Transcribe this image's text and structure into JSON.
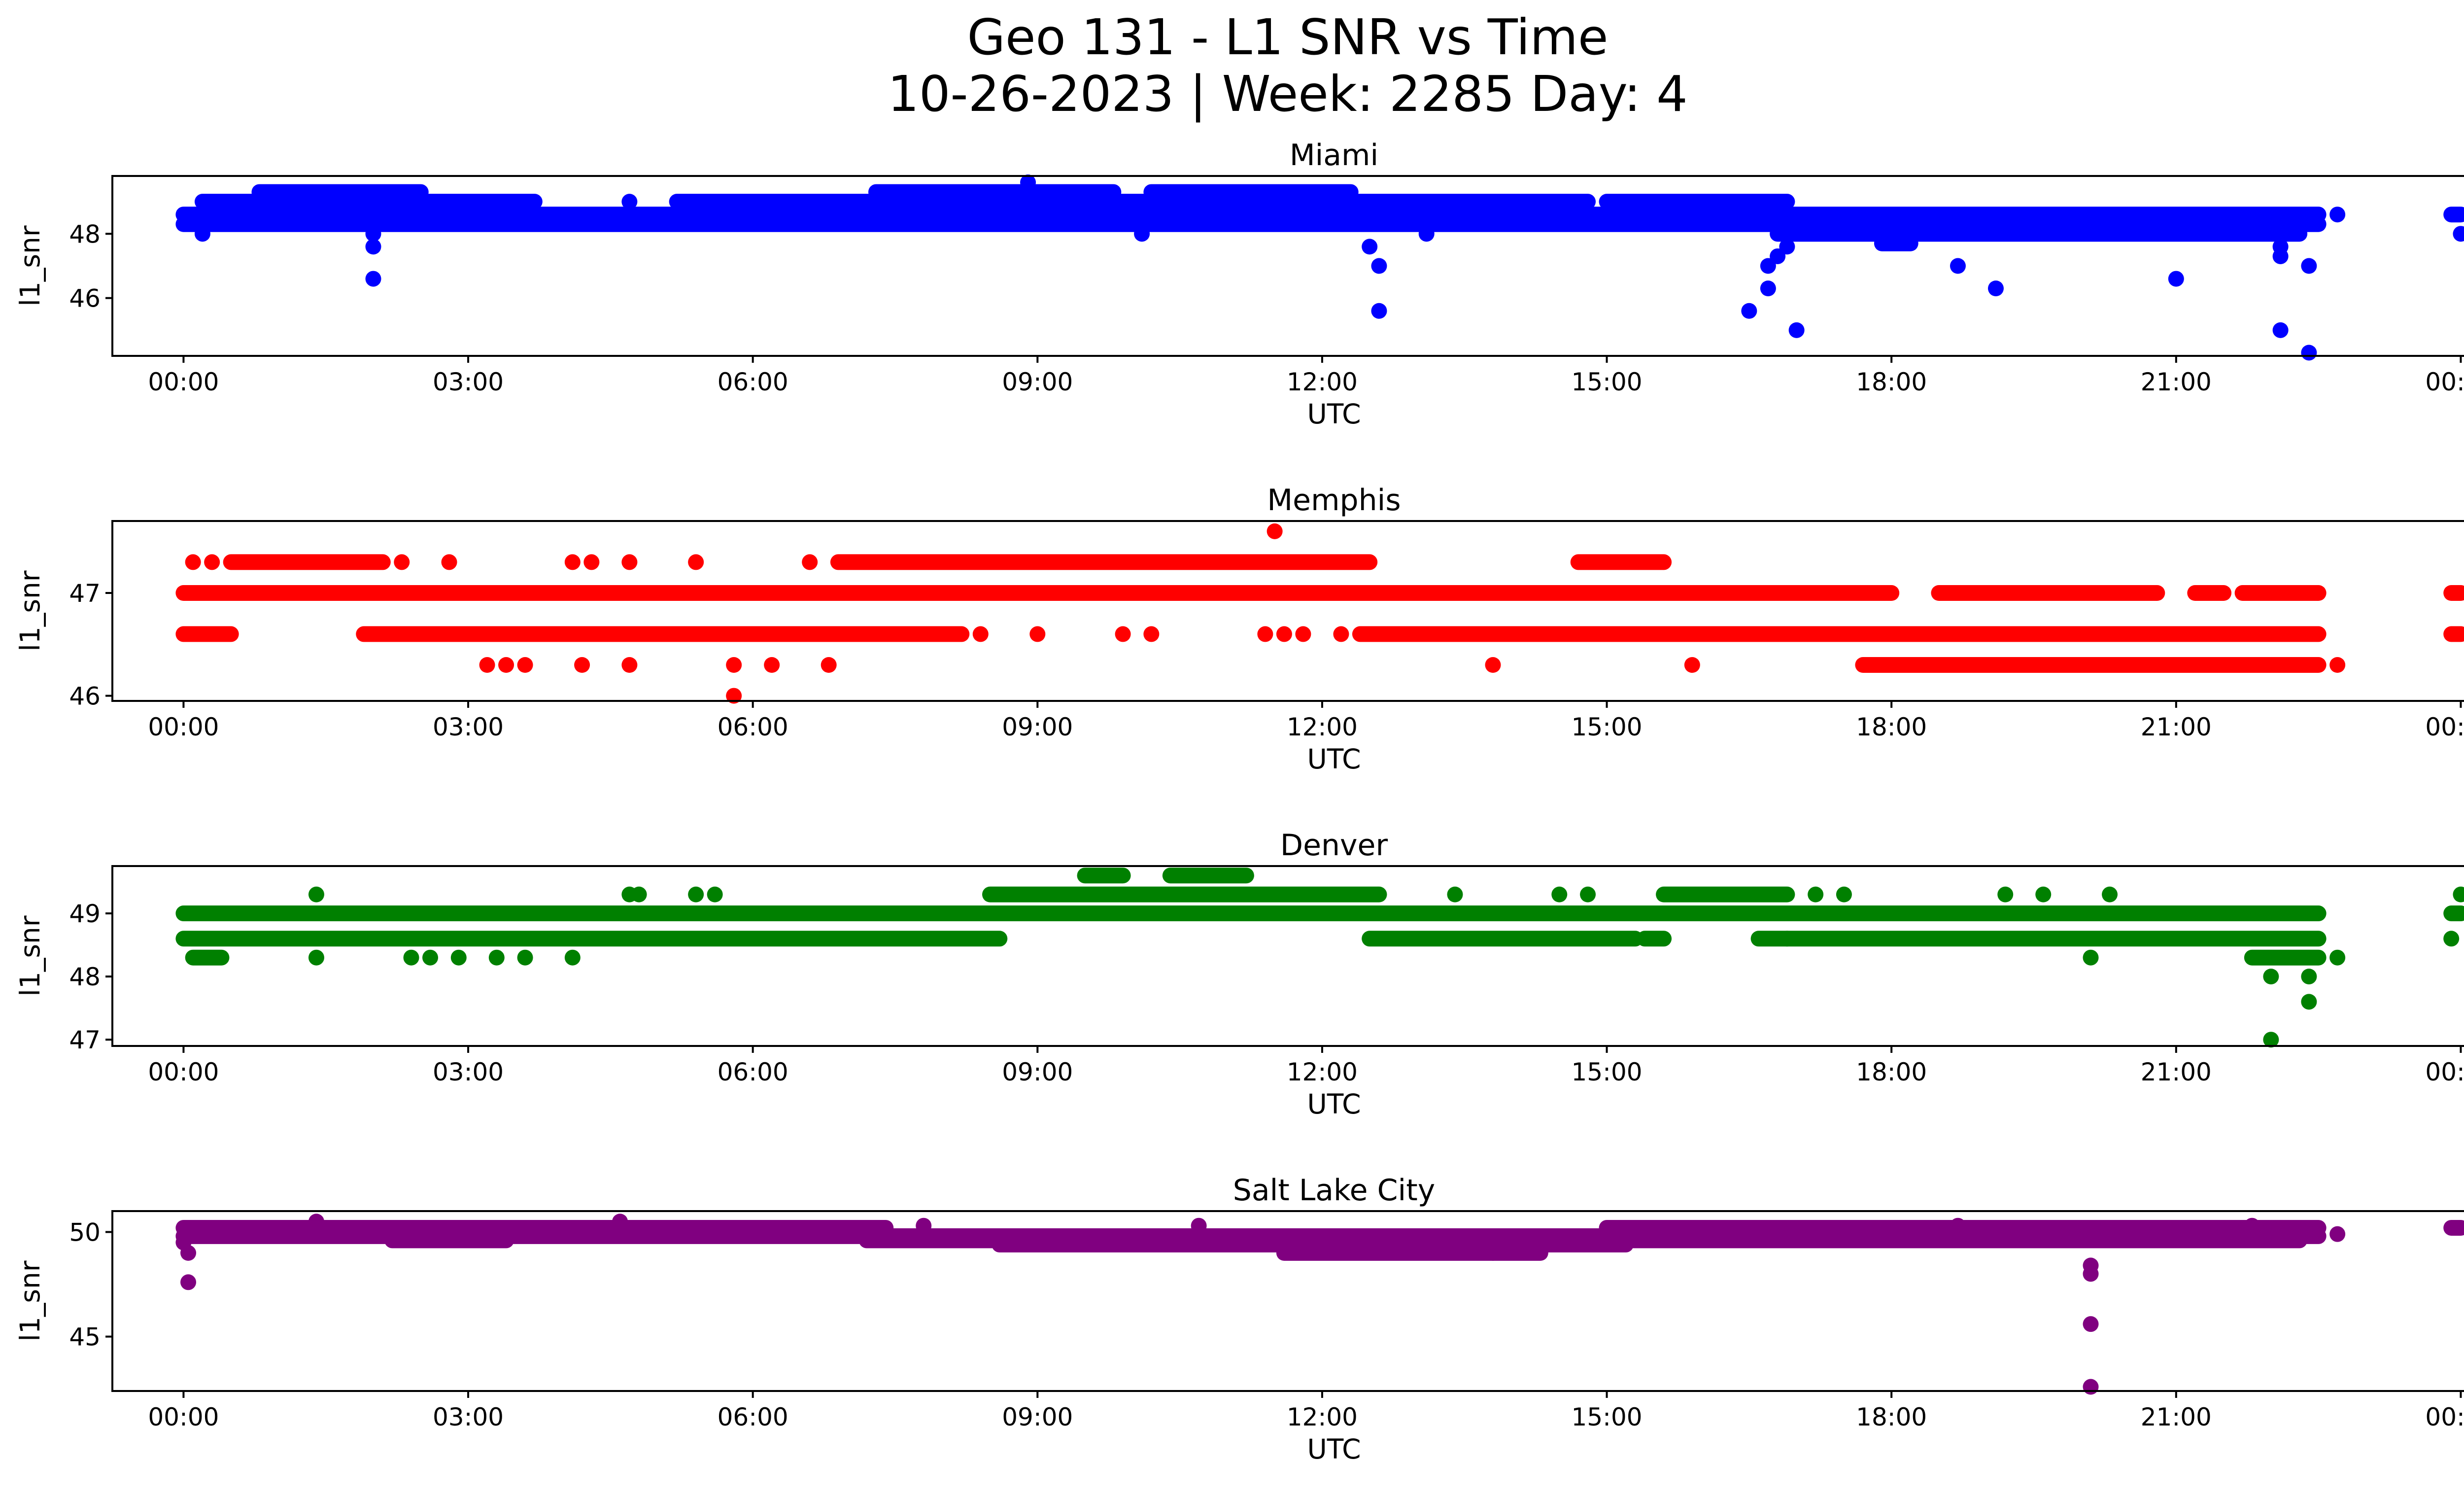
{
  "figure": {
    "title_line1": "Geo 131 - L1 SNR vs Time",
    "title_line2": "10-26-2023 | Week: 2285 Day: 4"
  },
  "chart_data": [
    {
      "type": "scatter",
      "title": "Miami",
      "xlabel": "UTC",
      "ylabel": "l1_snr",
      "color": "#0000ff",
      "x_unit": "hours since 00:00 UTC",
      "xlim": [
        -0.75,
        25.0
      ],
      "ylim": [
        44.2,
        49.8
      ],
      "yticks": [
        46,
        48
      ],
      "xtick_labels": [
        "00:00",
        "03:00",
        "06:00",
        "09:00",
        "12:00",
        "15:00",
        "18:00",
        "21:00",
        "00:00"
      ],
      "bands": [
        {
          "y": 48.3,
          "x": [
            [
              0.0,
              22.5
            ]
          ]
        },
        {
          "y": 48.6,
          "x": [
            [
              0.0,
              22.5
            ],
            [
              23.9,
              24.0
            ]
          ]
        },
        {
          "y": 49.0,
          "x": [
            [
              0.2,
              2.5
            ],
            [
              2.5,
              3.7
            ],
            [
              5.2,
              7.4
            ],
            [
              7.4,
              14.8
            ],
            [
              15.0,
              16.9
            ]
          ]
        },
        {
          "y": 49.3,
          "x": [
            [
              0.8,
              2.5
            ],
            [
              7.3,
              9.8
            ],
            [
              10.2,
              12.3
            ]
          ]
        },
        {
          "y": 48.0,
          "x": [
            [
              16.8,
              22.3
            ]
          ]
        },
        {
          "y": 47.7,
          "x": [
            [
              17.9,
              18.2
            ]
          ]
        }
      ],
      "points": [
        {
          "x": 2.0,
          "y": 48.0
        },
        {
          "x": 2.0,
          "y": 47.6
        },
        {
          "x": 2.0,
          "y": 46.6
        },
        {
          "x": 0.2,
          "y": 48.0
        },
        {
          "x": 4.7,
          "y": 49.0
        },
        {
          "x": 8.9,
          "y": 49.6
        },
        {
          "x": 10.1,
          "y": 48.0
        },
        {
          "x": 12.5,
          "y": 47.6
        },
        {
          "x": 12.6,
          "y": 47.0
        },
        {
          "x": 12.6,
          "y": 45.6
        },
        {
          "x": 13.1,
          "y": 48.0
        },
        {
          "x": 16.5,
          "y": 45.6
        },
        {
          "x": 16.7,
          "y": 47.0
        },
        {
          "x": 16.7,
          "y": 46.3
        },
        {
          "x": 16.8,
          "y": 47.3
        },
        {
          "x": 16.9,
          "y": 47.6
        },
        {
          "x": 17.0,
          "y": 45.0
        },
        {
          "x": 18.7,
          "y": 47.0
        },
        {
          "x": 19.1,
          "y": 46.3
        },
        {
          "x": 21.0,
          "y": 46.6
        },
        {
          "x": 22.1,
          "y": 47.6
        },
        {
          "x": 22.1,
          "y": 47.3
        },
        {
          "x": 22.1,
          "y": 45.0
        },
        {
          "x": 22.4,
          "y": 44.3
        },
        {
          "x": 22.4,
          "y": 47.0
        },
        {
          "x": 22.7,
          "y": 48.6
        },
        {
          "x": 24.0,
          "y": 48.0
        }
      ]
    },
    {
      "type": "scatter",
      "title": "Memphis",
      "xlabel": "UTC",
      "ylabel": "l1_snr",
      "color": "#ff0000",
      "x_unit": "hours since 00:00 UTC",
      "xlim": [
        -0.75,
        25.0
      ],
      "ylim": [
        45.95,
        47.7
      ],
      "yticks": [
        46,
        47
      ],
      "xtick_labels": [
        "00:00",
        "03:00",
        "06:00",
        "09:00",
        "12:00",
        "15:00",
        "18:00",
        "21:00",
        "00:00"
      ],
      "bands": [
        {
          "y": 47.0,
          "x": [
            [
              0.0,
              18.0
            ],
            [
              18.5,
              20.8
            ],
            [
              21.2,
              21.5
            ],
            [
              21.7,
              22.5
            ],
            [
              23.9,
              24.0
            ]
          ]
        },
        {
          "y": 47.3,
          "x": [
            [
              0.5,
              2.1
            ],
            [
              6.9,
              12.5
            ],
            [
              14.7,
              15.6
            ]
          ]
        },
        {
          "y": 46.6,
          "x": [
            [
              0.0,
              0.5
            ],
            [
              1.9,
              8.2
            ],
            [
              12.4,
              22.5
            ],
            [
              23.9,
              24.0
            ]
          ]
        },
        {
          "y": 46.3,
          "x": [
            [
              17.7,
              22.5
            ]
          ]
        }
      ],
      "points": [
        {
          "x": 0.1,
          "y": 47.3
        },
        {
          "x": 0.3,
          "y": 47.3
        },
        {
          "x": 2.3,
          "y": 47.3
        },
        {
          "x": 2.8,
          "y": 47.3
        },
        {
          "x": 4.1,
          "y": 47.3
        },
        {
          "x": 4.3,
          "y": 47.3
        },
        {
          "x": 4.7,
          "y": 47.3
        },
        {
          "x": 5.4,
          "y": 47.3
        },
        {
          "x": 6.6,
          "y": 47.3
        },
        {
          "x": 3.2,
          "y": 46.3
        },
        {
          "x": 3.4,
          "y": 46.3
        },
        {
          "x": 3.6,
          "y": 46.3
        },
        {
          "x": 4.2,
          "y": 46.3
        },
        {
          "x": 4.7,
          "y": 46.3
        },
        {
          "x": 5.8,
          "y": 46.3
        },
        {
          "x": 6.2,
          "y": 46.3
        },
        {
          "x": 6.8,
          "y": 46.3
        },
        {
          "x": 5.8,
          "y": 46.0
        },
        {
          "x": 8.4,
          "y": 46.6
        },
        {
          "x": 9.0,
          "y": 46.6
        },
        {
          "x": 9.9,
          "y": 46.6
        },
        {
          "x": 10.2,
          "y": 46.6
        },
        {
          "x": 11.4,
          "y": 46.6
        },
        {
          "x": 11.6,
          "y": 46.6
        },
        {
          "x": 11.8,
          "y": 46.6
        },
        {
          "x": 12.2,
          "y": 46.6
        },
        {
          "x": 11.5,
          "y": 47.6
        },
        {
          "x": 13.8,
          "y": 46.3
        },
        {
          "x": 15.9,
          "y": 46.3
        },
        {
          "x": 22.7,
          "y": 46.3
        }
      ]
    },
    {
      "type": "scatter",
      "title": "Denver",
      "xlabel": "UTC",
      "ylabel": "l1_snr",
      "color": "#008000",
      "x_unit": "hours since 00:00 UTC",
      "xlim": [
        -0.75,
        25.0
      ],
      "ylim": [
        46.9,
        49.75
      ],
      "yticks": [
        47,
        48,
        49
      ],
      "xtick_labels": [
        "00:00",
        "03:00",
        "06:00",
        "09:00",
        "12:00",
        "15:00",
        "18:00",
        "21:00",
        "00:00"
      ],
      "bands": [
        {
          "y": 49.0,
          "x": [
            [
              0.0,
              22.5
            ],
            [
              23.9,
              24.0
            ]
          ]
        },
        {
          "y": 48.6,
          "x": [
            [
              0.0,
              8.6
            ],
            [
              12.5,
              15.3
            ],
            [
              15.4,
              15.6
            ],
            [
              16.6,
              22.5
            ]
          ]
        },
        {
          "y": 49.3,
          "x": [
            [
              8.5,
              12.6
            ],
            [
              15.6,
              16.9
            ]
          ]
        },
        {
          "y": 49.6,
          "x": [
            [
              9.5,
              9.9
            ],
            [
              10.4,
              11.2
            ]
          ]
        },
        {
          "y": 48.3,
          "x": [
            [
              0.1,
              0.4
            ],
            [
              21.8,
              22.5
            ]
          ]
        }
      ],
      "points": [
        {
          "x": 1.4,
          "y": 49.3
        },
        {
          "x": 4.7,
          "y": 49.3
        },
        {
          "x": 4.8,
          "y": 49.3
        },
        {
          "x": 5.4,
          "y": 49.3
        },
        {
          "x": 5.6,
          "y": 49.3
        },
        {
          "x": 13.4,
          "y": 49.3
        },
        {
          "x": 14.5,
          "y": 49.3
        },
        {
          "x": 14.8,
          "y": 49.3
        },
        {
          "x": 17.2,
          "y": 49.3
        },
        {
          "x": 17.5,
          "y": 49.3
        },
        {
          "x": 19.2,
          "y": 49.3
        },
        {
          "x": 19.6,
          "y": 49.3
        },
        {
          "x": 20.3,
          "y": 49.3
        },
        {
          "x": 24.0,
          "y": 49.3
        },
        {
          "x": 1.4,
          "y": 48.3
        },
        {
          "x": 2.4,
          "y": 48.3
        },
        {
          "x": 2.6,
          "y": 48.3
        },
        {
          "x": 2.9,
          "y": 48.3
        },
        {
          "x": 3.3,
          "y": 48.3
        },
        {
          "x": 3.6,
          "y": 48.3
        },
        {
          "x": 4.1,
          "y": 48.3
        },
        {
          "x": 20.1,
          "y": 48.3
        },
        {
          "x": 22.7,
          "y": 48.3
        },
        {
          "x": 22.0,
          "y": 48.0
        },
        {
          "x": 22.4,
          "y": 48.0
        },
        {
          "x": 22.4,
          "y": 47.6
        },
        {
          "x": 22.0,
          "y": 47.0
        },
        {
          "x": 23.9,
          "y": 48.6
        },
        {
          "x": 16.9,
          "y": 48.6
        }
      ]
    },
    {
      "type": "scatter",
      "title": "Salt Lake City",
      "xlabel": "UTC",
      "ylabel": "l1_snr",
      "color": "#800080",
      "x_unit": "hours since 00:00 UTC",
      "xlim": [
        -0.75,
        25.0
      ],
      "ylim": [
        42.4,
        51.0
      ],
      "yticks": [
        45,
        50
      ],
      "xtick_labels": [
        "00:00",
        "03:00",
        "06:00",
        "09:00",
        "12:00",
        "15:00",
        "18:00",
        "21:00",
        "00:00"
      ],
      "bands": [
        {
          "y": 50.2,
          "x": [
            [
              0.0,
              7.4
            ],
            [
              15.0,
              22.5
            ],
            [
              23.9,
              24.0
            ]
          ]
        },
        {
          "y": 49.8,
          "x": [
            [
              0.0,
              22.5
            ]
          ]
        },
        {
          "y": 49.6,
          "x": [
            [
              2.2,
              3.4
            ],
            [
              7.2,
              12.0
            ],
            [
              14.0,
              22.3
            ]
          ]
        },
        {
          "y": 49.4,
          "x": [
            [
              8.6,
              15.2
            ]
          ]
        },
        {
          "y": 49.0,
          "x": [
            [
              11.6,
              14.3
            ]
          ]
        }
      ],
      "points": [
        {
          "x": 0.05,
          "y": 49.0
        },
        {
          "x": 0.05,
          "y": 47.6
        },
        {
          "x": 0.0,
          "y": 49.5
        },
        {
          "x": 1.4,
          "y": 50.5
        },
        {
          "x": 4.6,
          "y": 50.5
        },
        {
          "x": 7.8,
          "y": 50.3
        },
        {
          "x": 10.7,
          "y": 50.3
        },
        {
          "x": 18.7,
          "y": 50.3
        },
        {
          "x": 21.8,
          "y": 50.3
        },
        {
          "x": 20.1,
          "y": 48.4
        },
        {
          "x": 20.1,
          "y": 48.0
        },
        {
          "x": 20.1,
          "y": 45.6
        },
        {
          "x": 20.1,
          "y": 42.6
        },
        {
          "x": 22.7,
          "y": 49.9
        },
        {
          "x": 13.8,
          "y": 49.0
        },
        {
          "x": 14.2,
          "y": 49.1
        }
      ]
    }
  ]
}
